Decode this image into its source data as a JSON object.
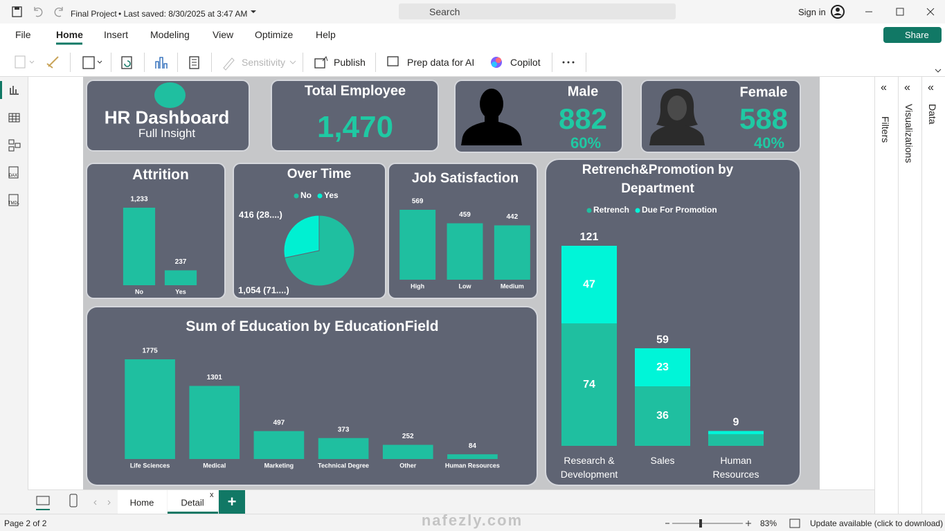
{
  "title_bar": {
    "file_name": "Final Project",
    "last_saved": "• Last saved: 8/30/2025 at 3:47 AM",
    "search": "Search",
    "sign_in": "Sign in"
  },
  "menu": {
    "tabs": [
      "File",
      "Home",
      "Insert",
      "Modeling",
      "View",
      "Optimize",
      "Help"
    ],
    "share": "Share"
  },
  "ribbon": {
    "sensitivity": "Sensitivity",
    "publish": "Publish",
    "prep_data": "Prep data for AI",
    "copilot": "Copilot"
  },
  "side_icons": [
    "DAX",
    "TMDL"
  ],
  "panes": [
    "Filters",
    "Visualizations",
    "Data"
  ],
  "page_tabs": [
    "Home",
    "Detail"
  ],
  "status_bar": {
    "page": "Page 2 of 2",
    "zoom": "83%",
    "update": "Update available (click to download)"
  },
  "watermark": "nafezly.com",
  "dashboard": {
    "title": "HR Dashboard",
    "subtitle": "Full Insight",
    "cards": [
      {
        "label": "Total Employee",
        "value": "1,470"
      },
      {
        "label": "Male",
        "value": "882",
        "share": "60%"
      },
      {
        "label": "Female",
        "value": "588",
        "share": "40%"
      }
    ]
  },
  "chart_data": [
    {
      "type": "bar",
      "title": "Attrition",
      "categories": [
        "No",
        "Yes"
      ],
      "values": [
        1233,
        237
      ],
      "value_labels": [
        "1,233",
        "237"
      ],
      "color": "#1fbfa0"
    },
    {
      "type": "pie",
      "title": "Over Time",
      "categories": [
        "No",
        "Yes"
      ],
      "values": [
        1054,
        416
      ],
      "value_labels": [
        "1,054 (71....)",
        "416 (28....)"
      ],
      "colors": [
        "#1fbfa0",
        "#00f0d2"
      ]
    },
    {
      "type": "bar",
      "title": "Job Satisfaction",
      "categories": [
        "High",
        "Low",
        "Medium"
      ],
      "values": [
        569,
        459,
        442
      ],
      "color": "#1fbfa0"
    },
    {
      "type": "bar",
      "title": "Sum of Education by EducationField",
      "categories": [
        "Life Sciences",
        "Medical",
        "Marketing",
        "Technical Degree",
        "Other",
        "Human Resources"
      ],
      "values": [
        1775,
        1301,
        497,
        373,
        252,
        84
      ],
      "color": "#1fbfa0"
    },
    {
      "type": "stacked_bar",
      "title": "Retrench&Promotion by Department",
      "categories": [
        "Research & Development",
        "Sales",
        "Human Resources"
      ],
      "series": [
        {
          "name": "Retrench",
          "color": "#1fbfa0",
          "values": [
            74,
            36,
            7
          ]
        },
        {
          "name": "Due For Promotion",
          "color": "#00f5d8",
          "values": [
            47,
            23,
            2
          ]
        }
      ],
      "total_labels": [
        "121",
        "59",
        "9"
      ]
    }
  ]
}
